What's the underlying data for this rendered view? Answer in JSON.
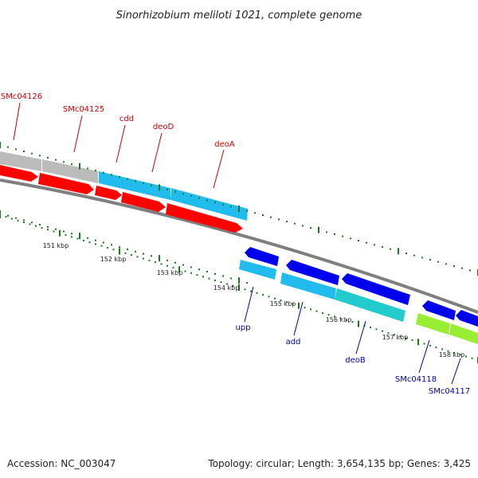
{
  "title": "Sinorhizobium meliloti 1021, complete genome",
  "footer": {
    "accession": "Accession: NC_003047",
    "topology": "Topology: circular; Length: 3,654,135 bp; Genes: 3,425"
  },
  "colors": {
    "backbone": "#7f7f7f",
    "tick": "#1a7a1a",
    "forward_cds": "#ff0000",
    "reverse_cds": "#0000ee",
    "gene_cyan": "#22bbee",
    "gene_teal": "#22cccc",
    "gene_gray": "#bbbbbb",
    "gene_lime": "#99ee33",
    "label_red": "#cc0000",
    "label_blue": "#0000aa"
  },
  "kbp_ticks": [
    {
      "kbp": 151,
      "label": "151 kbp"
    },
    {
      "kbp": 152,
      "label": "152 kbp"
    },
    {
      "kbp": 153,
      "label": "153 kbp"
    },
    {
      "kbp": 154,
      "label": "154 kbp"
    },
    {
      "kbp": 155,
      "label": "155 kbp"
    },
    {
      "kbp": 156,
      "label": "156 kbp"
    },
    {
      "kbp": 157,
      "label": "157 kbp"
    },
    {
      "kbp": 158,
      "label": "158 kbp"
    }
  ],
  "upper_labels": [
    {
      "name": "SMc04126"
    },
    {
      "name": "SMc04125"
    },
    {
      "name": "cdd"
    },
    {
      "name": "deoD"
    },
    {
      "name": "deoA"
    }
  ],
  "lower_labels": [
    {
      "name": "upp"
    },
    {
      "name": "add"
    },
    {
      "name": "deoB"
    },
    {
      "name": "SMc04118"
    },
    {
      "name": "SMc04117"
    }
  ]
}
